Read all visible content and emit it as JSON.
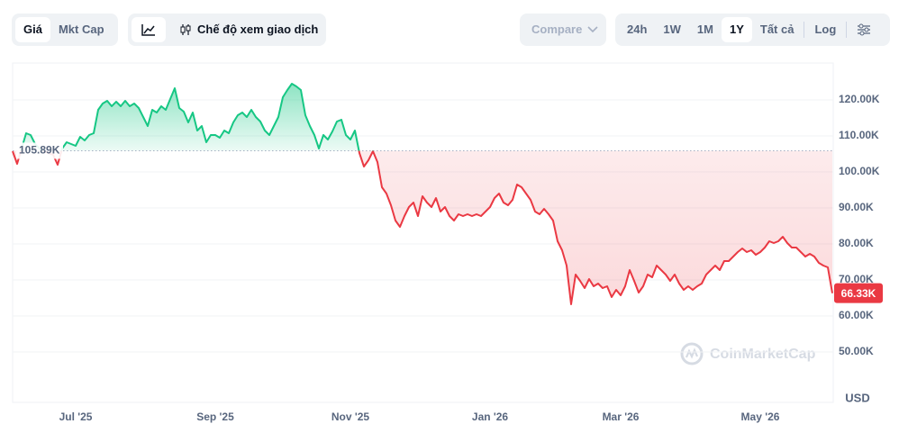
{
  "toolbar": {
    "view_tabs": [
      "Giá",
      "Mkt Cap"
    ],
    "trading_view": "Chế độ xem giao dịch",
    "compare": "Compare",
    "ranges": [
      "24h",
      "1W",
      "1M",
      "1Y",
      "Tất cả"
    ],
    "log": "Log"
  },
  "chart_data": {
    "type": "line",
    "categories": [
      null,
      null,
      null,
      null,
      null,
      null,
      null,
      null,
      null,
      null,
      null,
      null,
      null,
      null,
      "Jul '25",
      null,
      null,
      null,
      null,
      null,
      null,
      null,
      null,
      null,
      null,
      null,
      null,
      null,
      null,
      null,
      null,
      null,
      null,
      null,
      null,
      null,
      null,
      null,
      null,
      null,
      null,
      null,
      null,
      null,
      null,
      "Sep '25",
      null,
      null,
      null,
      null,
      null,
      null,
      null,
      null,
      null,
      null,
      null,
      null,
      null,
      null,
      null,
      null,
      null,
      null,
      null,
      null,
      null,
      null,
      null,
      null,
      null,
      null,
      null,
      null,
      null,
      "Nov '25",
      null,
      null,
      null,
      null,
      null,
      null,
      null,
      null,
      null,
      null,
      null,
      null,
      null,
      null,
      null,
      null,
      null,
      null,
      null,
      null,
      null,
      null,
      null,
      null,
      null,
      null,
      null,
      null,
      null,
      null,
      "Jan '26",
      null,
      null,
      null,
      null,
      null,
      null,
      null,
      null,
      null,
      null,
      null,
      null,
      null,
      null,
      null,
      null,
      null,
      null,
      null,
      null,
      null,
      null,
      null,
      null,
      null,
      null,
      null,
      null,
      "Mar '26",
      null,
      null,
      null,
      null,
      null,
      null,
      null,
      null,
      null,
      null,
      null,
      null,
      null,
      null,
      null,
      null,
      null,
      null,
      null,
      null,
      null,
      null,
      null,
      null,
      null,
      null,
      null,
      null,
      null,
      null,
      "May '26",
      null,
      null,
      null,
      null,
      null,
      null,
      null,
      null,
      null,
      null,
      null,
      null,
      null,
      null,
      null,
      null
    ],
    "values": [
      105750,
      102250,
      106500,
      110750,
      110250,
      107750,
      106500,
      105750,
      105250,
      104750,
      102000,
      106500,
      108250,
      107750,
      107250,
      109750,
      108750,
      110250,
      110750,
      117250,
      119000,
      119750,
      118250,
      119500,
      118250,
      119750,
      118250,
      119000,
      117750,
      115250,
      112750,
      117250,
      116500,
      118250,
      117250,
      120250,
      123250,
      117750,
      116750,
      113750,
      116500,
      111500,
      112750,
      108250,
      110250,
      110250,
      109500,
      111500,
      110750,
      113750,
      115750,
      116500,
      115250,
      117250,
      115250,
      114000,
      111500,
      110250,
      112750,
      115250,
      120750,
      122750,
      124500,
      123750,
      122750,
      115750,
      112750,
      110250,
      106500,
      110250,
      109000,
      111250,
      114000,
      114500,
      110250,
      109000,
      111500,
      105250,
      101500,
      103250,
      105750,
      102750,
      95750,
      94000,
      90750,
      86500,
      84750,
      87750,
      90250,
      91500,
      87750,
      93250,
      91500,
      90250,
      92750,
      89000,
      90250,
      87750,
      86500,
      88250,
      87750,
      88250,
      87750,
      88250,
      87750,
      89000,
      90250,
      92750,
      94000,
      91500,
      90750,
      92250,
      96500,
      95750,
      94000,
      92250,
      89000,
      88250,
      89750,
      88250,
      86500,
      80750,
      78250,
      74000,
      63250,
      71500,
      69750,
      67750,
      70250,
      68250,
      69000,
      67750,
      68250,
      65250,
      67250,
      65750,
      68250,
      72750,
      69750,
      66500,
      68250,
      71500,
      70750,
      74000,
      72750,
      71500,
      69750,
      71500,
      69000,
      67250,
      68250,
      67250,
      68250,
      69000,
      71500,
      72750,
      74000,
      72750,
      75250,
      75250,
      76500,
      77750,
      78750,
      77750,
      78250,
      77000,
      77750,
      79000,
      80750,
      80250,
      80750,
      82000,
      80250,
      79000,
      79000,
      77750,
      76500,
      77250,
      76500,
      74750,
      74000,
      73500,
      66330
    ],
    "up_color": "#16c784",
    "down_color": "#ea3943",
    "baseline": {
      "value": 105890,
      "label": "105.89K"
    },
    "current_price": {
      "value": 66330,
      "label": "66.33K"
    },
    "ylim": [
      35000,
      130000
    ],
    "yticks": [
      {
        "value": 50000,
        "label": "50.00K"
      },
      {
        "value": 60000,
        "label": "60.00K"
      },
      {
        "value": 70000,
        "label": "70.00K"
      },
      {
        "value": 80000,
        "label": "80.00K"
      },
      {
        "value": 90000,
        "label": "90.00K"
      },
      {
        "value": 100000,
        "label": "100.00K"
      },
      {
        "value": 110000,
        "label": "110.00K"
      },
      {
        "value": 120000,
        "label": "120.00K"
      }
    ],
    "grid": true,
    "y_unit": "USD",
    "watermark": "CoinMarketCap"
  }
}
